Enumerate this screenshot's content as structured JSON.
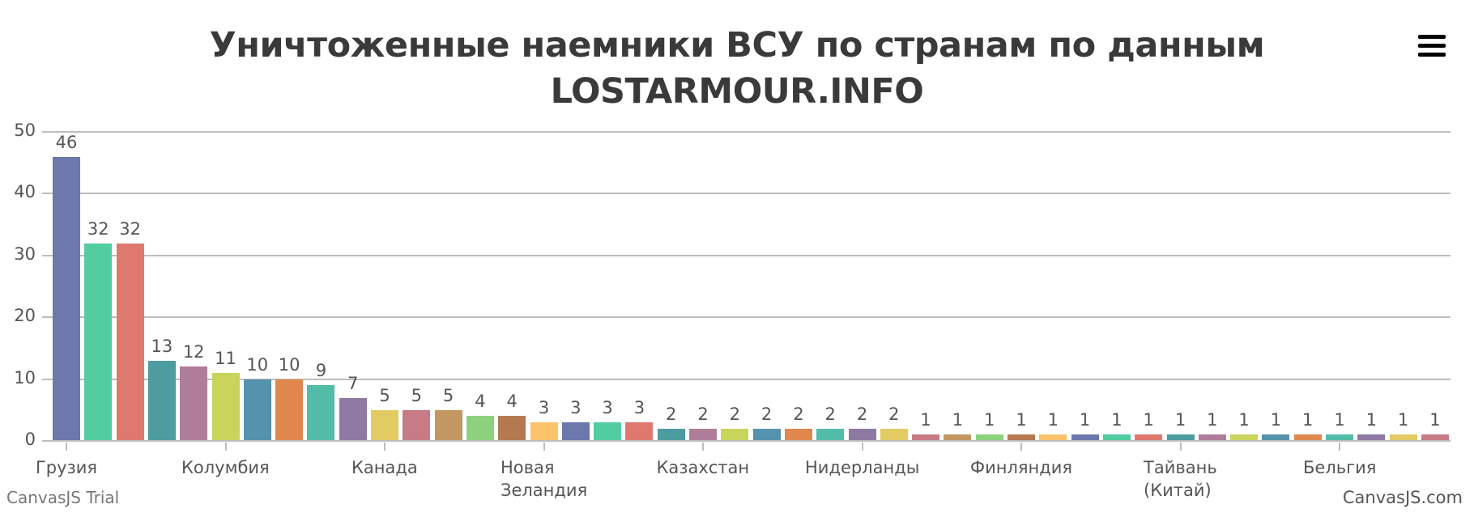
{
  "chart": {
    "title_line1": "Уничтоженные наемники ВСУ по странам по данным",
    "title_line2": "LOSTARMOUR.INFO",
    "menu_icon": "hamburger-menu-icon",
    "credit_left": "CanvasJS Trial",
    "credit_right": "CanvasJS.com",
    "colors": [
      "#6D78AD",
      "#51CDA0",
      "#DF7970",
      "#4C9CA0",
      "#AE7D99",
      "#C9D45C",
      "#5592AD",
      "#DF874D",
      "#52BCA8",
      "#8E7AA3",
      "#E3CB64",
      "#C77B85",
      "#C39762",
      "#8DD17E",
      "#B57952",
      "#FCC26C"
    ],
    "gridline_color": "#bdbdbd",
    "text_color": "#555555",
    "title_color": "#3a3a3a"
  },
  "chart_data": {
    "type": "bar",
    "title": "Уничтоженные наемники ВСУ по странам по данным LOSTARMOUR.INFO",
    "xlabel": "",
    "ylabel": "",
    "ylim": [
      0,
      50
    ],
    "yticks": [
      0,
      10,
      20,
      30,
      40,
      50
    ],
    "grid": true,
    "legend": "none",
    "data_labels": true,
    "visible_category_labels": [
      {
        "index": 0,
        "label": "Грузия"
      },
      {
        "index": 5,
        "label": "Колумбия"
      },
      {
        "index": 10,
        "label": "Канада"
      },
      {
        "index": 15,
        "label": "Новая\nЗеландия"
      },
      {
        "index": 20,
        "label": "Казахстан"
      },
      {
        "index": 25,
        "label": "Нидерланды"
      },
      {
        "index": 30,
        "label": "Финляндия"
      },
      {
        "index": 35,
        "label": "Тайвань\n(Китай)"
      },
      {
        "index": 40,
        "label": "Бельгия"
      }
    ],
    "values": [
      46,
      32,
      32,
      13,
      12,
      11,
      10,
      10,
      9,
      7,
      5,
      5,
      5,
      4,
      4,
      3,
      3,
      3,
      3,
      2,
      2,
      2,
      2,
      2,
      2,
      2,
      2,
      1,
      1,
      1,
      1,
      1,
      1,
      1,
      1,
      1,
      1,
      1,
      1,
      1,
      1,
      1,
      1,
      1
    ]
  }
}
